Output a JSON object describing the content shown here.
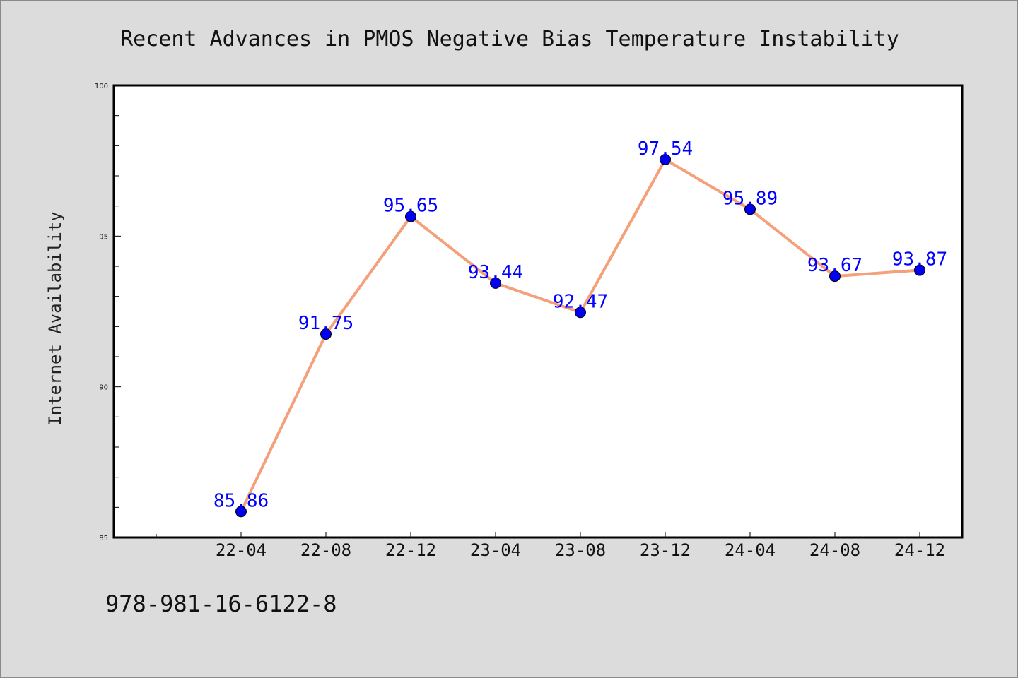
{
  "isbn": "978-981-16-6122-8",
  "colors": {
    "background": "#dcdcdc",
    "plot_area": "#ffffff",
    "line": "#f4a07a",
    "marker": "#0000ee",
    "data_label": "#0000ff"
  },
  "chart_data": {
    "type": "line",
    "title": "Recent Advances in PMOS Negative Bias Temperature Instability",
    "xlabel": "",
    "ylabel": "Internet Availability",
    "categories": [
      "22-04",
      "22-08",
      "22-12",
      "23-04",
      "23-08",
      "23-12",
      "24-04",
      "24-08",
      "24-12"
    ],
    "series": [
      {
        "values": [
          85.86,
          91.75,
          95.65,
          93.44,
          92.47,
          97.54,
          95.89,
          93.67,
          93.87
        ],
        "labels": [
          "85.86",
          "91.75",
          "95.65",
          "93.44",
          "92.47",
          "97.54",
          "95.89",
          "93.67",
          "93.87"
        ]
      }
    ],
    "ylim": [
      85,
      100
    ],
    "yticks": [
      "85",
      "90",
      "95",
      "100"
    ],
    "grid": false,
    "legend": "none"
  }
}
